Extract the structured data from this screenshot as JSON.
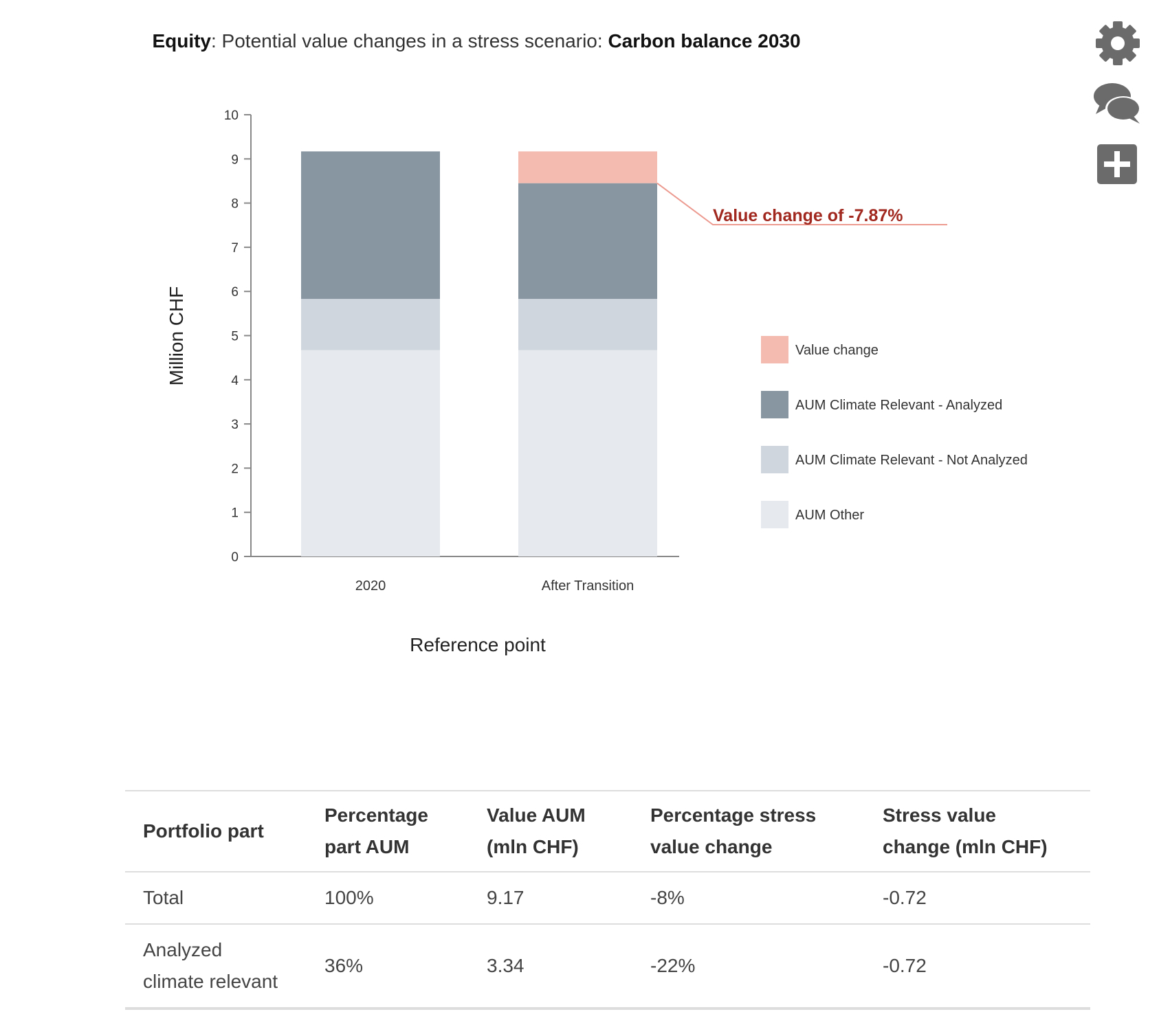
{
  "title": {
    "part1": "Equity",
    "part2": ": Potential value changes in a stress scenario: ",
    "part3": "Carbon balance 2030"
  },
  "chart_data": {
    "type": "bar",
    "stacked": true,
    "categories": [
      "2020",
      "After Transition"
    ],
    "series": [
      {
        "name": "AUM Other",
        "color": "#e6e9ee",
        "values": [
          4.67,
          4.67
        ]
      },
      {
        "name": "AUM Climate Relevant - Not Analyzed",
        "color": "#d0d6de",
        "values": [
          1.16,
          1.16
        ]
      },
      {
        "name": "AUM Climate Relevant - Analyzed",
        "color": "#8896a1",
        "values": [
          3.34,
          2.62
        ]
      },
      {
        "name": "Value change",
        "color": "#f4bbb1",
        "values": [
          0,
          0.72
        ]
      }
    ],
    "legend_order": [
      "Value change",
      "AUM Climate Relevant - Analyzed",
      "AUM Climate Relevant - Not Analyzed",
      "AUM Other"
    ],
    "legend_position": "right",
    "xlabel": "Reference point",
    "ylabel": "Million CHF",
    "ylim": [
      0,
      10
    ],
    "yticks": [
      "0",
      "1",
      "2",
      "3",
      "4",
      "5",
      "6",
      "7",
      "8",
      "9",
      "10"
    ],
    "annotation": {
      "text": "Value change of -7.87%",
      "color": "#a0281e"
    },
    "grid": false
  },
  "icons": [
    "gear-icon",
    "comments-icon",
    "plus-icon"
  ],
  "table": {
    "headers": [
      [
        "Portfolio part"
      ],
      [
        "Percentage",
        "part AUM"
      ],
      [
        "Value AUM",
        "(mln CHF)"
      ],
      [
        "Percentage stress",
        "value change"
      ],
      [
        "Stress value",
        "change (mln CHF)"
      ]
    ],
    "rows": [
      [
        [
          "Total"
        ],
        [
          "100%"
        ],
        [
          "9.17"
        ],
        [
          "-8%"
        ],
        [
          "-0.72"
        ]
      ],
      [
        [
          "Analyzed",
          "climate relevant"
        ],
        [
          "36%"
        ],
        [
          "3.34"
        ],
        [
          "-22%"
        ],
        [
          "-0.72"
        ]
      ]
    ]
  }
}
